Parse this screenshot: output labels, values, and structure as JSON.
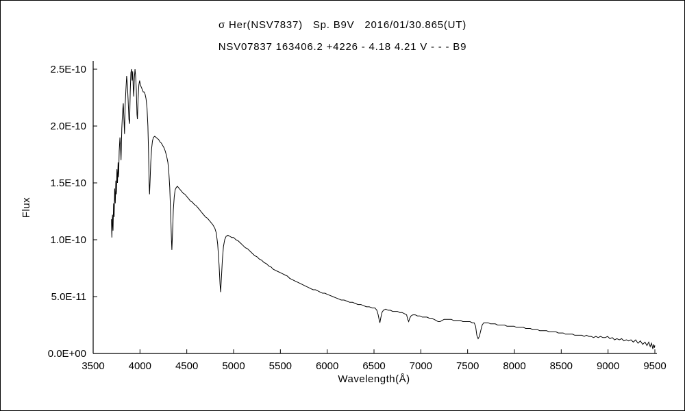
{
  "header": {
    "title_line1": "σ Her(NSV7837)   Sp. B9V   2016/01/30.865(UT)",
    "title_line2": "NSV07837 163406.2 +4226 - 4.18 4.21 V - - - B9"
  },
  "chart_data": {
    "type": "line",
    "title": "σ Her(NSV7837)  Sp. B9V  2016/01/30.865(UT)",
    "subtitle": "NSV07837 163406.2 +4226 - 4.18 4.21 V - - - B9",
    "xlabel": "Wavelength(Å)",
    "ylabel": "Flux",
    "xlim": [
      3500,
      9500
    ],
    "ylim": [
      0,
      2.5
    ],
    "y_values_unit": "1e-10 (same scale as y-axis tick labels)",
    "grid": false,
    "legend": "none",
    "line_color": "#000000",
    "background_color": "#ffffff",
    "x_ticks": [
      {
        "value": 3500,
        "label": "3500"
      },
      {
        "value": 4000,
        "label": "4000"
      },
      {
        "value": 4500,
        "label": "4500"
      },
      {
        "value": 5000,
        "label": "5000"
      },
      {
        "value": 5500,
        "label": "5500"
      },
      {
        "value": 6000,
        "label": "6000"
      },
      {
        "value": 6500,
        "label": "6500"
      },
      {
        "value": 7000,
        "label": "7000"
      },
      {
        "value": 7500,
        "label": "7500"
      },
      {
        "value": 8000,
        "label": "8000"
      },
      {
        "value": 8500,
        "label": "8500"
      },
      {
        "value": 9000,
        "label": "9000"
      },
      {
        "value": 9500,
        "label": "9500"
      }
    ],
    "y_ticks": [
      {
        "value": 0.0,
        "label": "0.0E+00"
      },
      {
        "value": 0.5,
        "label": "5.0E-11"
      },
      {
        "value": 1.0,
        "label": "1.0E-10"
      },
      {
        "value": 1.5,
        "label": "1.5E-10"
      },
      {
        "value": 2.0,
        "label": "2.0E-10"
      },
      {
        "value": 2.5,
        "label": "2.5E-10"
      }
    ],
    "points": [
      [
        3695,
        1.18
      ],
      [
        3700,
        1.02
      ],
      [
        3706,
        1.22
      ],
      [
        3712,
        1.08
      ],
      [
        3718,
        1.32
      ],
      [
        3724,
        1.2
      ],
      [
        3730,
        1.45
      ],
      [
        3736,
        1.32
      ],
      [
        3742,
        1.52
      ],
      [
        3748,
        1.4
      ],
      [
        3754,
        1.62
      ],
      [
        3760,
        1.5
      ],
      [
        3766,
        1.68
      ],
      [
        3772,
        1.55
      ],
      [
        3778,
        1.78
      ],
      [
        3786,
        1.9
      ],
      [
        3792,
        1.82
      ],
      [
        3798,
        1.7
      ],
      [
        3806,
        1.98
      ],
      [
        3814,
        2.12
      ],
      [
        3822,
        2.2
      ],
      [
        3828,
        2.08
      ],
      [
        3835,
        1.93
      ],
      [
        3842,
        2.18
      ],
      [
        3850,
        2.32
      ],
      [
        3858,
        2.44
      ],
      [
        3866,
        2.36
      ],
      [
        3874,
        2.22
      ],
      [
        3882,
        2.06
      ],
      [
        3889,
        2.02
      ],
      [
        3896,
        2.3
      ],
      [
        3903,
        2.47
      ],
      [
        3910,
        2.5
      ],
      [
        3916,
        2.4
      ],
      [
        3922,
        2.48
      ],
      [
        3928,
        2.34
      ],
      [
        3934,
        2.26
      ],
      [
        3940,
        2.42
      ],
      [
        3947,
        2.5
      ],
      [
        3954,
        2.44
      ],
      [
        3961,
        2.32
      ],
      [
        3968,
        2.1
      ],
      [
        3973,
        2.06
      ],
      [
        3980,
        2.24
      ],
      [
        3988,
        2.36
      ],
      [
        3996,
        2.4
      ],
      [
        4005,
        2.36
      ],
      [
        4015,
        2.34
      ],
      [
        4025,
        2.32
      ],
      [
        4035,
        2.3
      ],
      [
        4045,
        2.3
      ],
      [
        4055,
        2.28
      ],
      [
        4065,
        2.24
      ],
      [
        4075,
        2.16
      ],
      [
        4085,
        2.0
      ],
      [
        4092,
        1.76
      ],
      [
        4098,
        1.5
      ],
      [
        4102,
        1.4
      ],
      [
        4108,
        1.52
      ],
      [
        4115,
        1.68
      ],
      [
        4124,
        1.8
      ],
      [
        4134,
        1.87
      ],
      [
        4144,
        1.9
      ],
      [
        4158,
        1.91
      ],
      [
        4172,
        1.9
      ],
      [
        4186,
        1.89
      ],
      [
        4200,
        1.88
      ],
      [
        4214,
        1.86
      ],
      [
        4228,
        1.85
      ],
      [
        4242,
        1.83
      ],
      [
        4256,
        1.81
      ],
      [
        4270,
        1.78
      ],
      [
        4284,
        1.74
      ],
      [
        4298,
        1.68
      ],
      [
        4308,
        1.6
      ],
      [
        4318,
        1.46
      ],
      [
        4328,
        1.22
      ],
      [
        4336,
        1.0
      ],
      [
        4341,
        0.91
      ],
      [
        4348,
        1.06
      ],
      [
        4356,
        1.26
      ],
      [
        4366,
        1.38
      ],
      [
        4376,
        1.44
      ],
      [
        4388,
        1.46
      ],
      [
        4400,
        1.47
      ],
      [
        4420,
        1.45
      ],
      [
        4440,
        1.43
      ],
      [
        4460,
        1.41
      ],
      [
        4480,
        1.4
      ],
      [
        4500,
        1.38
      ],
      [
        4520,
        1.36
      ],
      [
        4540,
        1.34
      ],
      [
        4560,
        1.33
      ],
      [
        4580,
        1.31
      ],
      [
        4600,
        1.3
      ],
      [
        4620,
        1.28
      ],
      [
        4640,
        1.26
      ],
      [
        4660,
        1.24
      ],
      [
        4680,
        1.22
      ],
      [
        4700,
        1.2
      ],
      [
        4720,
        1.19
      ],
      [
        4740,
        1.17
      ],
      [
        4760,
        1.15
      ],
      [
        4780,
        1.13
      ],
      [
        4800,
        1.1
      ],
      [
        4815,
        1.06
      ],
      [
        4830,
        0.96
      ],
      [
        4845,
        0.78
      ],
      [
        4855,
        0.61
      ],
      [
        4862,
        0.54
      ],
      [
        4870,
        0.66
      ],
      [
        4880,
        0.82
      ],
      [
        4892,
        0.94
      ],
      [
        4905,
        1.0
      ],
      [
        4920,
        1.03
      ],
      [
        4940,
        1.04
      ],
      [
        4960,
        1.03
      ],
      [
        4980,
        1.02
      ],
      [
        5000,
        1.02
      ],
      [
        5025,
        1.0
      ],
      [
        5050,
        0.99
      ],
      [
        5075,
        0.97
      ],
      [
        5100,
        0.95
      ],
      [
        5125,
        0.93
      ],
      [
        5150,
        0.92
      ],
      [
        5175,
        0.9
      ],
      [
        5200,
        0.88
      ],
      [
        5225,
        0.86
      ],
      [
        5250,
        0.85
      ],
      [
        5275,
        0.83
      ],
      [
        5300,
        0.82
      ],
      [
        5325,
        0.8
      ],
      [
        5350,
        0.79
      ],
      [
        5375,
        0.77
      ],
      [
        5400,
        0.76
      ],
      [
        5425,
        0.74
      ],
      [
        5450,
        0.73
      ],
      [
        5475,
        0.72
      ],
      [
        5500,
        0.71
      ],
      [
        5525,
        0.7
      ],
      [
        5550,
        0.69
      ],
      [
        5575,
        0.68
      ],
      [
        5600,
        0.66
      ],
      [
        5625,
        0.65
      ],
      [
        5650,
        0.64
      ],
      [
        5675,
        0.63
      ],
      [
        5700,
        0.62
      ],
      [
        5725,
        0.61
      ],
      [
        5750,
        0.6
      ],
      [
        5775,
        0.59
      ],
      [
        5800,
        0.58
      ],
      [
        5825,
        0.57
      ],
      [
        5850,
        0.56
      ],
      [
        5875,
        0.56
      ],
      [
        5900,
        0.55
      ],
      [
        5925,
        0.54
      ],
      [
        5950,
        0.53
      ],
      [
        5975,
        0.53
      ],
      [
        6000,
        0.52
      ],
      [
        6030,
        0.51
      ],
      [
        6060,
        0.5
      ],
      [
        6090,
        0.49
      ],
      [
        6120,
        0.48
      ],
      [
        6150,
        0.47
      ],
      [
        6180,
        0.47
      ],
      [
        6210,
        0.46
      ],
      [
        6240,
        0.45
      ],
      [
        6270,
        0.45
      ],
      [
        6300,
        0.44
      ],
      [
        6330,
        0.43
      ],
      [
        6360,
        0.43
      ],
      [
        6390,
        0.42
      ],
      [
        6420,
        0.41
      ],
      [
        6450,
        0.41
      ],
      [
        6480,
        0.4
      ],
      [
        6510,
        0.4
      ],
      [
        6530,
        0.38
      ],
      [
        6545,
        0.34
      ],
      [
        6556,
        0.29
      ],
      [
        6563,
        0.27
      ],
      [
        6572,
        0.31
      ],
      [
        6585,
        0.36
      ],
      [
        6600,
        0.38
      ],
      [
        6625,
        0.39
      ],
      [
        6650,
        0.38
      ],
      [
        6675,
        0.38
      ],
      [
        6700,
        0.37
      ],
      [
        6725,
        0.37
      ],
      [
        6750,
        0.37
      ],
      [
        6775,
        0.36
      ],
      [
        6800,
        0.36
      ],
      [
        6825,
        0.35
      ],
      [
        6848,
        0.34
      ],
      [
        6860,
        0.3
      ],
      [
        6870,
        0.28
      ],
      [
        6882,
        0.31
      ],
      [
        6895,
        0.33
      ],
      [
        6915,
        0.34
      ],
      [
        6940,
        0.34
      ],
      [
        6965,
        0.33
      ],
      [
        6990,
        0.33
      ],
      [
        7015,
        0.32
      ],
      [
        7040,
        0.32
      ],
      [
        7065,
        0.32
      ],
      [
        7090,
        0.31
      ],
      [
        7115,
        0.31
      ],
      [
        7140,
        0.3
      ],
      [
        7165,
        0.29
      ],
      [
        7185,
        0.28
      ],
      [
        7205,
        0.28
      ],
      [
        7225,
        0.29
      ],
      [
        7250,
        0.3
      ],
      [
        7275,
        0.3
      ],
      [
        7300,
        0.3
      ],
      [
        7325,
        0.3
      ],
      [
        7350,
        0.29
      ],
      [
        7375,
        0.29
      ],
      [
        7400,
        0.29
      ],
      [
        7425,
        0.29
      ],
      [
        7450,
        0.28
      ],
      [
        7475,
        0.28
      ],
      [
        7500,
        0.28
      ],
      [
        7525,
        0.28
      ],
      [
        7550,
        0.27
      ],
      [
        7570,
        0.27
      ],
      [
        7585,
        0.24
      ],
      [
        7598,
        0.16
      ],
      [
        7612,
        0.13
      ],
      [
        7625,
        0.15
      ],
      [
        7640,
        0.2
      ],
      [
        7655,
        0.25
      ],
      [
        7672,
        0.27
      ],
      [
        7695,
        0.27
      ],
      [
        7720,
        0.27
      ],
      [
        7745,
        0.26
      ],
      [
        7770,
        0.26
      ],
      [
        7795,
        0.26
      ],
      [
        7820,
        0.25
      ],
      [
        7845,
        0.25
      ],
      [
        7870,
        0.25
      ],
      [
        7895,
        0.25
      ],
      [
        7920,
        0.24
      ],
      [
        7945,
        0.24
      ],
      [
        7970,
        0.24
      ],
      [
        7995,
        0.24
      ],
      [
        8020,
        0.23
      ],
      [
        8045,
        0.23
      ],
      [
        8070,
        0.23
      ],
      [
        8095,
        0.23
      ],
      [
        8120,
        0.22
      ],
      [
        8145,
        0.22
      ],
      [
        8170,
        0.22
      ],
      [
        8195,
        0.21
      ],
      [
        8220,
        0.21
      ],
      [
        8245,
        0.21
      ],
      [
        8270,
        0.2
      ],
      [
        8295,
        0.2
      ],
      [
        8320,
        0.2
      ],
      [
        8345,
        0.2
      ],
      [
        8370,
        0.19
      ],
      [
        8395,
        0.19
      ],
      [
        8420,
        0.19
      ],
      [
        8445,
        0.19
      ],
      [
        8470,
        0.18
      ],
      [
        8495,
        0.18
      ],
      [
        8520,
        0.18
      ],
      [
        8545,
        0.17
      ],
      [
        8570,
        0.17
      ],
      [
        8595,
        0.17
      ],
      [
        8620,
        0.17
      ],
      [
        8645,
        0.16
      ],
      [
        8670,
        0.16
      ],
      [
        8695,
        0.16
      ],
      [
        8720,
        0.16
      ],
      [
        8745,
        0.15
      ],
      [
        8770,
        0.16
      ],
      [
        8795,
        0.15
      ],
      [
        8820,
        0.15
      ],
      [
        8845,
        0.14
      ],
      [
        8870,
        0.15
      ],
      [
        8895,
        0.14
      ],
      [
        8920,
        0.15
      ],
      [
        8945,
        0.14
      ],
      [
        8970,
        0.14
      ],
      [
        8995,
        0.15
      ],
      [
        9020,
        0.13
      ],
      [
        9045,
        0.14
      ],
      [
        9070,
        0.12
      ],
      [
        9095,
        0.13
      ],
      [
        9120,
        0.12
      ],
      [
        9145,
        0.13
      ],
      [
        9170,
        0.11
      ],
      [
        9195,
        0.12
      ],
      [
        9220,
        0.11
      ],
      [
        9245,
        0.12
      ],
      [
        9270,
        0.1
      ],
      [
        9295,
        0.12
      ],
      [
        9320,
        0.09
      ],
      [
        9345,
        0.11
      ],
      [
        9370,
        0.08
      ],
      [
        9395,
        0.1
      ],
      [
        9415,
        0.07
      ],
      [
        9435,
        0.1
      ],
      [
        9450,
        0.06
      ],
      [
        9465,
        0.09
      ],
      [
        9478,
        0.04
      ],
      [
        9488,
        0.08
      ],
      [
        9495,
        0.05
      ],
      [
        9500,
        0.07
      ]
    ]
  }
}
